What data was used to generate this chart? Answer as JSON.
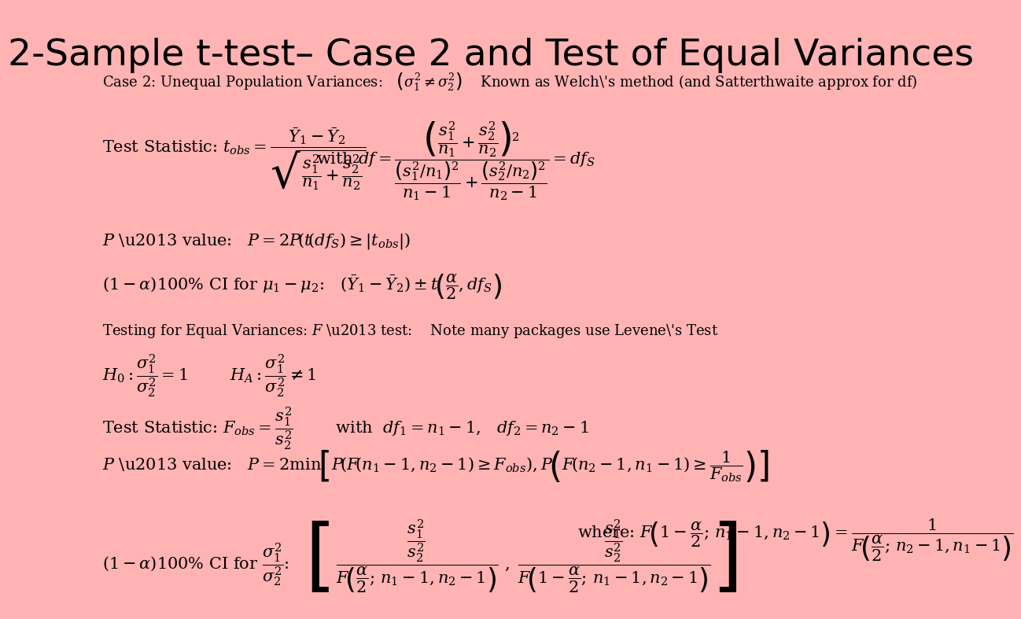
{
  "title": "2-Sample t-test– Case 2 and Test of Equal Variances",
  "bg_color": "#FFB3B3",
  "title_color": "#000000",
  "title_fontsize": 34,
  "content_fontsize": 13,
  "math_fontsize": 15
}
